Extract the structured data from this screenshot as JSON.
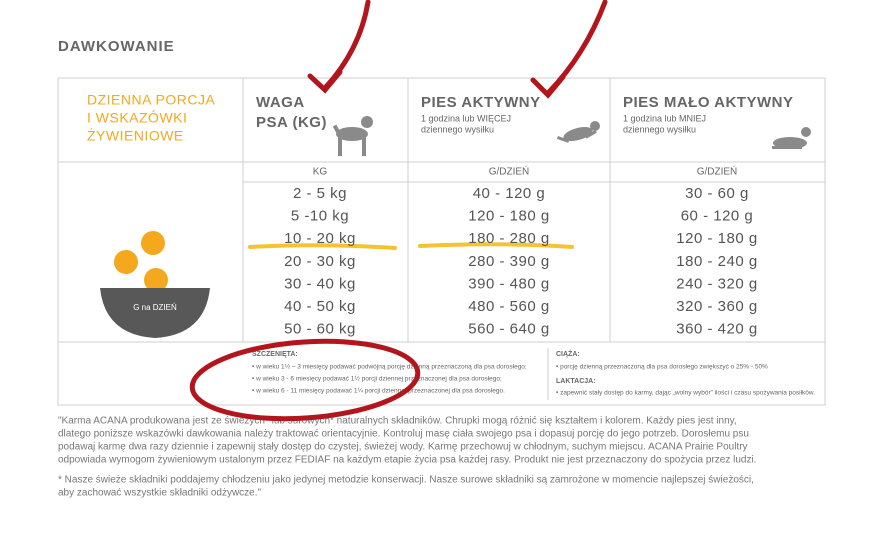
{
  "title": "DAWKOWANIE",
  "table": {
    "header": {
      "intro": [
        "DZIENNA PORCJA",
        "I WSKAZÓWKI",
        "ŻYWIENIOWE"
      ],
      "weight": [
        "WAGA",
        "PSA (KG)"
      ],
      "active": {
        "title": "PIES AKTYWNY",
        "note": [
          "1 godzina lub WIĘCEJ",
          "dziennego wysiłku"
        ]
      },
      "inactive": {
        "title": "PIES MAŁO AKTYWNY",
        "note": [
          "1 godzina lub MNIEJ",
          "dziennego wysiłku"
        ]
      }
    },
    "units": [
      "KG",
      "G/DZIEŃ",
      "G/DZIEŃ"
    ],
    "bowl_label": "G na DZIEŃ",
    "rows": [
      [
        "2 - 5 kg",
        "40 - 120 g",
        "30 - 60 g"
      ],
      [
        "5 -10 kg",
        "120 - 180 g",
        "60 - 120 g"
      ],
      [
        "10 - 20 kg",
        "180 - 280 g",
        "120 - 180 g"
      ],
      [
        "20 - 30 kg",
        "280 - 390 g",
        "180 - 240 g"
      ],
      [
        "30 - 40 kg",
        "390 - 480 g",
        "240 - 320 g"
      ],
      [
        "40 - 50 kg",
        "480 - 560 g",
        "320 - 360 g"
      ],
      [
        "50 - 60 kg",
        "560 - 640 g",
        "360 - 420 g"
      ]
    ]
  },
  "notes": {
    "puppies": {
      "title": "SZCZENIĘTA:",
      "items": [
        "• w wieku 1½ – 3 miesięcy podawać podwójną porcję dzienną przeznaczoną dla psa dorosłego;",
        "• w wieku 3 - 6 miesięcy podawać 1½ porcji dziennej przeznaczonej dla psa dorosłego;",
        "• w wieku 6 - 11 miesięcy podawać 1¼ porcji dziennej przeznaczonej dla psa dorosłego."
      ]
    },
    "pregnancy": {
      "title": "CIĄŻA:",
      "items": [
        "• porcję dzienną przeznaczoną dla psa dorosłego zwiększyć o 25% - 50%"
      ]
    },
    "lactation": {
      "title": "LAKTACJA:",
      "items": [
        "• zapewnić stały dostęp do karmy, dając „wolny wybór” ilości i czasu spożywania posiłków."
      ]
    }
  },
  "footer": {
    "paragraph": [
      "\"Karma ACANA produkowana jest ze świeżych* lub surowych* naturalnych składników. Chrupki mogą różnić się kształtem i kolorem. Każdy pies jest inny,",
      "dlatego poniższe wskazówki dawkowania należy traktować orientacyjnie. Kontroluj masę ciała swojego psa i dopasuj porcję do jego potrzeb. Dorosłemu psu",
      "podawaj karmę dwa razy dziennie i zapewnij stały dostęp do czystej, świeżej wody. Karmę przechowuj w chłodnym, suchym miejscu. ACANA Prairie Poultry",
      "odpowiada wymogom żywieniowym ustalonym przez FEDIAF na każdym etapie życia psa każdej rasy. Produkt nie jest przeznaczony do spożycia przez ludzi."
    ],
    "footnote": [
      "* Nasze świeże składniki poddajemy chłodzeniu jako jedynej metodzie konserwacji. Nasze surowe składniki są zamrożone w momencie najlepszej świeżości,",
      "aby zachować wszystkie składniki odżywcze.\""
    ]
  }
}
